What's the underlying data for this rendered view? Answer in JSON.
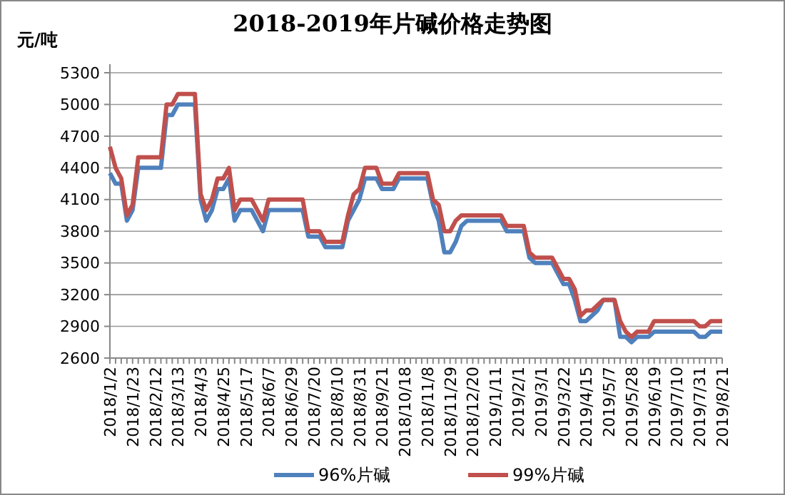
{
  "chart_data": {
    "type": "line",
    "title": "2018-2019年片碱价格走势图",
    "ylabel": "元/吨",
    "categories": [
      "2018/1/2",
      null,
      null,
      null,
      "2018/1/23",
      null,
      null,
      null,
      "2018/2/12",
      null,
      null,
      null,
      "2018/3/13",
      null,
      null,
      null,
      "2018/4/3",
      null,
      null,
      null,
      "2018/4/25",
      null,
      null,
      null,
      "2018/5/17",
      null,
      null,
      null,
      "2018/6/7",
      null,
      null,
      null,
      "2018/6/29",
      null,
      null,
      null,
      "2018/7/20",
      null,
      null,
      null,
      "2018/8/10",
      null,
      null,
      null,
      "2018/8/31",
      null,
      null,
      null,
      "2018/9/21",
      null,
      null,
      null,
      "2018/10/18",
      null,
      null,
      null,
      "2018/11/8",
      null,
      null,
      null,
      "2018/11/29",
      null,
      null,
      null,
      "2018/12/20",
      null,
      null,
      null,
      "2019/1/11",
      null,
      null,
      null,
      "2019/2/1",
      null,
      null,
      null,
      "2019/3/1",
      null,
      null,
      null,
      "2019/3/22",
      null,
      null,
      null,
      "2019/4/15",
      null,
      null,
      null,
      "2019/5/7",
      null,
      null,
      null,
      "2019/5/28",
      null,
      null,
      null,
      "2019/6/19",
      null,
      null,
      null,
      "2019/7/10",
      null,
      null,
      null,
      "2019/7/31",
      null,
      null,
      null,
      "2019/8/21"
    ],
    "series": [
      {
        "name": "96%片碱",
        "color": "#4f81bd",
        "values": [
          4350,
          4250,
          4250,
          3900,
          4000,
          4400,
          4400,
          4400,
          4400,
          4400,
          4900,
          4900,
          5000,
          5000,
          5000,
          5000,
          4100,
          3900,
          4000,
          4200,
          4200,
          4300,
          3900,
          4000,
          4000,
          4000,
          3900,
          3800,
          4000,
          4000,
          4000,
          4000,
          4000,
          4000,
          4000,
          3750,
          3750,
          3750,
          3650,
          3650,
          3650,
          3650,
          3900,
          4000,
          4100,
          4300,
          4300,
          4300,
          4200,
          4200,
          4200,
          4300,
          4300,
          4300,
          4300,
          4300,
          4300,
          4050,
          3900,
          3600,
          3600,
          3700,
          3850,
          3900,
          3900,
          3900,
          3900,
          3900,
          3900,
          3900,
          3800,
          3800,
          3800,
          3800,
          3550,
          3500,
          3500,
          3500,
          3500,
          3400,
          3300,
          3300,
          3150,
          2950,
          2950,
          3000,
          3050,
          3150,
          3150,
          3150,
          2800,
          2800,
          2750,
          2800,
          2800,
          2800,
          2850,
          2850,
          2850,
          2850,
          2850,
          2850,
          2850,
          2850,
          2800,
          2800,
          2850,
          2850,
          2850
        ]
      },
      {
        "name": "99%片碱",
        "color": "#c0504d",
        "values": [
          4600,
          4400,
          4300,
          3950,
          4050,
          4500,
          4500,
          4500,
          4500,
          4500,
          5000,
          5000,
          5100,
          5100,
          5100,
          5100,
          4150,
          4000,
          4100,
          4300,
          4300,
          4400,
          4000,
          4100,
          4100,
          4100,
          4000,
          3900,
          4100,
          4100,
          4100,
          4100,
          4100,
          4100,
          4100,
          3800,
          3800,
          3800,
          3700,
          3700,
          3700,
          3700,
          3950,
          4150,
          4200,
          4400,
          4400,
          4400,
          4250,
          4250,
          4250,
          4350,
          4350,
          4350,
          4350,
          4350,
          4350,
          4100,
          4050,
          3800,
          3800,
          3900,
          3950,
          3950,
          3950,
          3950,
          3950,
          3950,
          3950,
          3950,
          3850,
          3850,
          3850,
          3850,
          3600,
          3550,
          3550,
          3550,
          3550,
          3450,
          3350,
          3350,
          3250,
          3000,
          3050,
          3050,
          3100,
          3150,
          3150,
          3150,
          2950,
          2850,
          2800,
          2850,
          2850,
          2850,
          2950,
          2950,
          2950,
          2950,
          2950,
          2950,
          2950,
          2950,
          2900,
          2900,
          2950,
          2950,
          2950
        ]
      }
    ],
    "ylim": [
      2600,
      5300
    ],
    "yticks": [
      2600,
      2900,
      3200,
      3500,
      3800,
      4100,
      4400,
      4700,
      5000,
      5300
    ],
    "grid": "y",
    "legend": "bottom",
    "marker": "none",
    "line_style": "solid"
  }
}
